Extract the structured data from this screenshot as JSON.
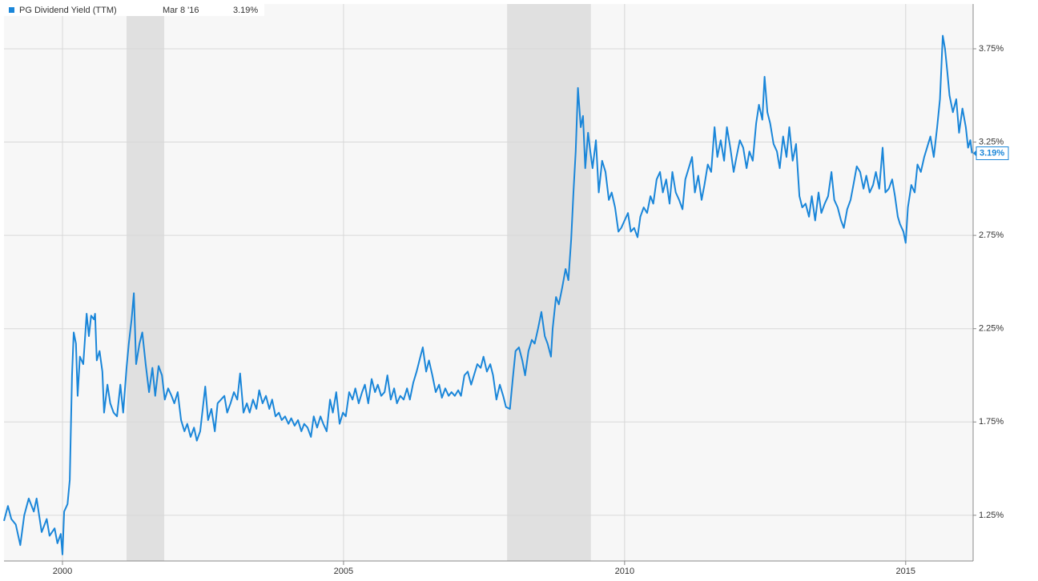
{
  "chart_data": {
    "type": "line",
    "series": [
      {
        "name": "PG Dividend Yield (TTM)",
        "color": "#1a86d9",
        "values": [
          1.22,
          1.3,
          1.23,
          1.2,
          1.09,
          1.25,
          1.34,
          1.27,
          1.34,
          1.16,
          1.23,
          1.14,
          1.18,
          1.1,
          1.15,
          1.04,
          1.27,
          1.31,
          1.44,
          2.0,
          2.23,
          2.17,
          1.89,
          2.1,
          2.06,
          2.33,
          2.21,
          2.32,
          2.3,
          2.33,
          2.08,
          2.13,
          2.02,
          1.8,
          1.95,
          1.85,
          1.8,
          1.78,
          1.95,
          1.8,
          2.04,
          2.17,
          2.3,
          2.44,
          2.06,
          2.17,
          2.23,
          2.06,
          1.91,
          2.04,
          1.89,
          2.05,
          2.0,
          1.87,
          1.93,
          1.89,
          1.85,
          1.91,
          1.76,
          1.7,
          1.74,
          1.67,
          1.72,
          1.65,
          1.7,
          1.94,
          1.76,
          1.82,
          1.7,
          1.85,
          1.87,
          1.89,
          1.8,
          1.85,
          1.91,
          1.87,
          2.01,
          1.8,
          1.85,
          1.8,
          1.87,
          1.82,
          1.92,
          1.85,
          1.89,
          1.82,
          1.87,
          1.78,
          1.8,
          1.76,
          1.78,
          1.74,
          1.77,
          1.73,
          1.76,
          1.7,
          1.74,
          1.72,
          1.67,
          1.78,
          1.72,
          1.78,
          1.74,
          1.7,
          1.87,
          1.8,
          1.91,
          1.74,
          1.8,
          1.78,
          1.91,
          1.87,
          1.93,
          1.85,
          1.91,
          1.95,
          1.85,
          1.98,
          1.91,
          1.95,
          1.89,
          1.91,
          2.0,
          1.87,
          1.93,
          1.85,
          1.89,
          1.87,
          1.93,
          1.87,
          1.96,
          2.02,
          2.08,
          2.15,
          2.02,
          2.08,
          2.0,
          1.91,
          1.95,
          1.88,
          1.93,
          1.89,
          1.91,
          1.89,
          1.92,
          1.89,
          2.0,
          2.02,
          1.95,
          2.0,
          2.06,
          2.04,
          2.1,
          2.02,
          2.06,
          2.0,
          1.87,
          1.95,
          1.89,
          1.83,
          1.82,
          1.98,
          2.13,
          2.15,
          2.08,
          2.0,
          2.13,
          2.19,
          2.17,
          2.25,
          2.34,
          2.21,
          2.17,
          2.1,
          2.25,
          2.42,
          2.38,
          2.47,
          2.57,
          2.51,
          2.73,
          2.98,
          3.2,
          3.54,
          3.33,
          3.39,
          3.11,
          3.3,
          3.2,
          3.11,
          3.26,
          2.98,
          3.15,
          3.09,
          2.94,
          2.98,
          2.9,
          2.77,
          2.79,
          2.83,
          2.87,
          2.77,
          2.79,
          2.74,
          2.85,
          2.9,
          2.87,
          2.96,
          2.92,
          3.05,
          3.09,
          2.98,
          3.05,
          2.92,
          3.09,
          2.98,
          2.94,
          2.89,
          3.05,
          3.11,
          3.17,
          2.98,
          3.07,
          2.94,
          3.02,
          3.13,
          3.09,
          3.33,
          3.17,
          3.26,
          3.15,
          3.33,
          3.22,
          3.09,
          3.17,
          3.26,
          3.22,
          3.11,
          3.2,
          3.15,
          3.35,
          3.45,
          3.37,
          3.6,
          3.41,
          3.35,
          3.24,
          3.2,
          3.11,
          3.28,
          3.17,
          3.33,
          3.15,
          3.24,
          2.96,
          2.9,
          2.92,
          2.85,
          2.96,
          2.83,
          2.98,
          2.87,
          2.92,
          2.96,
          3.09,
          2.94,
          2.9,
          2.83,
          2.79,
          2.89,
          2.94,
          3.02,
          3.12,
          3.09,
          3.0,
          3.07,
          2.98,
          3.02,
          3.09,
          3.0,
          3.22,
          2.98,
          3.0,
          3.05,
          2.96,
          2.85,
          2.81,
          2.77,
          2.71,
          2.9,
          3.02,
          2.98,
          3.13,
          3.09,
          3.17,
          3.22,
          3.28,
          3.17,
          3.33,
          3.48,
          3.82,
          3.75,
          3.63,
          3.5,
          3.41,
          3.48,
          3.3,
          3.43,
          3.33,
          3.22,
          3.26,
          3.19
        ]
      }
    ],
    "x": [
      1998.96,
      1999.03,
      1999.09,
      1999.17,
      1999.25,
      1999.32,
      1999.4,
      1999.49,
      1999.54,
      1999.63,
      1999.72,
      1999.77,
      1999.86,
      1999.91,
      1999.97,
      2000.0,
      2000.03,
      2000.09,
      2000.13,
      2000.17,
      2000.2,
      2000.24,
      2000.27,
      2000.31,
      2000.37,
      2000.43,
      2000.47,
      2000.51,
      2000.56,
      2000.58,
      2000.61,
      2000.66,
      2000.71,
      2000.74,
      2000.8,
      2000.85,
      2000.91,
      2000.97,
      2001.03,
      2001.08,
      2001.14,
      2001.18,
      2001.23,
      2001.27,
      2001.31,
      2001.37,
      2001.42,
      2001.48,
      2001.54,
      2001.6,
      2001.65,
      2001.71,
      2001.77,
      2001.82,
      2001.88,
      2001.94,
      2001.99,
      2002.05,
      2002.11,
      2002.17,
      2002.22,
      2002.28,
      2002.34,
      2002.39,
      2002.45,
      2002.54,
      2002.59,
      2002.65,
      2002.71,
      2002.76,
      2002.82,
      2002.88,
      2002.93,
      2002.99,
      2003.05,
      2003.11,
      2003.16,
      2003.22,
      2003.28,
      2003.33,
      2003.39,
      2003.45,
      2003.5,
      2003.56,
      2003.62,
      2003.68,
      2003.73,
      2003.79,
      2003.85,
      2003.9,
      2003.96,
      2004.02,
      2004.07,
      2004.13,
      2004.19,
      2004.25,
      2004.3,
      2004.36,
      2004.42,
      2004.47,
      2004.53,
      2004.59,
      2004.64,
      2004.7,
      2004.76,
      2004.81,
      2004.87,
      2004.93,
      2004.99,
      2005.04,
      2005.1,
      2005.16,
      2005.21,
      2005.27,
      2005.33,
      2005.38,
      2005.44,
      2005.5,
      2005.56,
      2005.61,
      2005.67,
      2005.73,
      2005.78,
      2005.84,
      2005.9,
      2005.95,
      2006.01,
      2006.07,
      2006.13,
      2006.18,
      2006.24,
      2006.3,
      2006.35,
      2006.41,
      2006.47,
      2006.52,
      2006.58,
      2006.64,
      2006.7,
      2006.75,
      2006.81,
      2006.87,
      2006.92,
      2006.98,
      2007.04,
      2007.09,
      2007.15,
      2007.21,
      2007.27,
      2007.32,
      2007.38,
      2007.44,
      2007.49,
      2007.55,
      2007.61,
      2007.66,
      2007.72,
      2007.78,
      2007.84,
      2007.89,
      2007.96,
      2008.01,
      2008.06,
      2008.12,
      2008.18,
      2008.23,
      2008.29,
      2008.35,
      2008.4,
      2008.46,
      2008.52,
      2008.58,
      2008.63,
      2008.69,
      2008.72,
      2008.78,
      2008.83,
      2008.89,
      2008.95,
      2009.0,
      2009.05,
      2009.09,
      2009.13,
      2009.17,
      2009.22,
      2009.26,
      2009.3,
      2009.35,
      2009.39,
      2009.43,
      2009.49,
      2009.54,
      2009.6,
      2009.66,
      2009.72,
      2009.77,
      2009.83,
      2009.89,
      2009.94,
      2010.0,
      2010.06,
      2010.11,
      2010.17,
      2010.23,
      2010.28,
      2010.34,
      2010.4,
      2010.46,
      2010.51,
      2010.57,
      2010.63,
      2010.68,
      2010.74,
      2010.8,
      2010.85,
      2010.91,
      2010.97,
      2011.03,
      2011.08,
      2011.14,
      2011.2,
      2011.25,
      2011.31,
      2011.37,
      2011.42,
      2011.48,
      2011.54,
      2011.6,
      2011.65,
      2011.71,
      2011.77,
      2011.82,
      2011.88,
      2011.94,
      2011.99,
      2012.05,
      2012.11,
      2012.17,
      2012.22,
      2012.28,
      2012.34,
      2012.39,
      2012.45,
      2012.49,
      2012.54,
      2012.59,
      2012.65,
      2012.71,
      2012.76,
      2012.82,
      2012.88,
      2012.93,
      2012.99,
      2013.05,
      2013.11,
      2013.16,
      2013.22,
      2013.28,
      2013.33,
      2013.39,
      2013.45,
      2013.5,
      2013.56,
      2013.62,
      2013.68,
      2013.73,
      2013.79,
      2013.85,
      2013.9,
      2013.96,
      2014.02,
      2014.07,
      2014.13,
      2014.19,
      2014.25,
      2014.3,
      2014.36,
      2014.42,
      2014.47,
      2014.53,
      2014.59,
      2014.64,
      2014.7,
      2014.76,
      2014.81,
      2014.86,
      2014.9,
      2014.96,
      2015.0,
      2015.04,
      2015.1,
      2015.16,
      2015.21,
      2015.27,
      2015.33,
      2015.38,
      2015.44,
      2015.5,
      2015.56,
      2015.61,
      2015.66,
      2015.7,
      2015.74,
      2015.78,
      2015.84,
      2015.9,
      2015.95,
      2016.01,
      2016.07,
      2016.11,
      2016.15,
      2016.18
    ],
    "xlim": [
      1998.96,
      2016.2
    ],
    "xticks": [
      2000,
      2005,
      2010,
      2015
    ],
    "ylim": [
      1.005,
      3.99
    ],
    "yticks": [
      {
        "value": 1.25,
        "label": "1.25%"
      },
      {
        "value": 1.75,
        "label": "1.75%"
      },
      {
        "value": 2.25,
        "label": "2.25%"
      },
      {
        "value": 2.75,
        "label": "2.75%"
      },
      {
        "value": 3.25,
        "label": "3.25%"
      },
      {
        "value": 3.75,
        "label": "3.75%"
      }
    ],
    "grid": true,
    "recessions": [
      [
        2001.14,
        2001.81
      ],
      [
        2007.91,
        2009.4
      ]
    ],
    "current": {
      "date": "Mar 8 '16",
      "value": 3.19,
      "label": "3.19%"
    }
  }
}
